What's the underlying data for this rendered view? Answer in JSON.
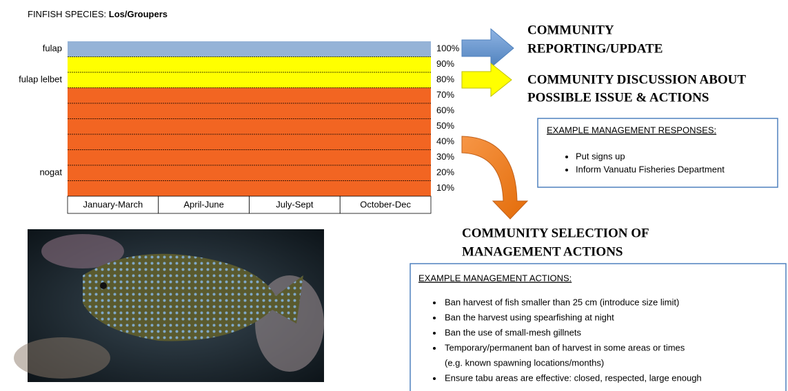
{
  "header": {
    "prefix": "FINFISH SPECIES:",
    "species": "Los/Groupers"
  },
  "chart": {
    "rows": [
      {
        "label": "100%",
        "color": "#95b3d7",
        "zone": "fulap"
      },
      {
        "label": "90%",
        "color": "#ffff00"
      },
      {
        "label": "80%",
        "color": "#ffff00",
        "zone": "fulap lelbet"
      },
      {
        "label": "70%",
        "color": "#f26522"
      },
      {
        "label": "60%",
        "color": "#f26522"
      },
      {
        "label": "50%",
        "color": "#f26522"
      },
      {
        "label": "40%",
        "color": "#f26522"
      },
      {
        "label": "30%",
        "color": "#f26522"
      },
      {
        "label": "20%",
        "color": "#f26522",
        "zone": "nogat"
      },
      {
        "label": "10%",
        "color": "#f26522"
      }
    ],
    "quarters": [
      "January-March",
      "April-June",
      "July-Sept",
      "October-Dec"
    ]
  },
  "steps": [
    {
      "lines": [
        "COMMUNITY",
        "REPORTING/UPDATE"
      ]
    },
    {
      "lines": [
        "COMMUNITY DISCUSSION ABOUT",
        "POSSIBLE ISSUE & ACTIONS"
      ]
    },
    {
      "lines": [
        "COMMUNITY SELECTION OF",
        "MANAGEMENT ACTIONS"
      ]
    }
  ],
  "responses": {
    "title": "EXAMPLE MANAGEMENT RESPONSES:",
    "items": [
      "Put signs up",
      "Inform Vanuatu Fisheries Department"
    ]
  },
  "actions": {
    "title": "EXAMPLE MANAGEMENT ACTIONS:",
    "items": [
      {
        "lines": [
          "Ban harvest of fish smaller than 25 cm (introduce size limit)"
        ]
      },
      {
        "lines": [
          "Ban the harvest using spearfishing at night"
        ]
      },
      {
        "lines": [
          "Ban the use of small-mesh gillnets"
        ]
      },
      {
        "lines": [
          "Temporary/permanent ban of harvest in some areas or times",
          "(e.g. known spawning locations/months)"
        ]
      },
      {
        "lines": [
          "Ensure tabu areas are effective: closed, respected, large enough"
        ]
      }
    ]
  }
}
